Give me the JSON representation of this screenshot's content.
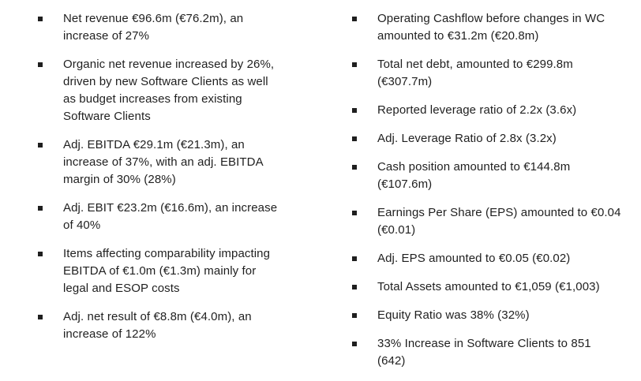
{
  "page": {
    "background_color": "#ffffff",
    "text_color": "#1f1f1f",
    "bullet_style": "small-black-square"
  },
  "columns": [
    {
      "name": "financial-highlights-left",
      "items": [
        {
          "text": "Net revenue €96.6m (€76.2m), an\nincrease of 27%"
        },
        {
          "text": "Organic net revenue increased by 26%,\ndriven by new Software Clients as well\nas budget increases from existing\nSoftware Clients"
        },
        {
          "text": "Adj. EBITDA €29.1m (€21.3m), an\nincrease of 37%, with an adj. EBITDA\nmargin of 30% (28%)"
        },
        {
          "text": "Adj. EBIT €23.2m (€16.6m), an increase\nof 40%"
        },
        {
          "text": "Items affecting comparability impacting\nEBITDA of €1.0m (€1.3m) mainly for\nlegal and ESOP costs"
        },
        {
          "text": "Adj. net result of €8.8m (€4.0m), an\nincrease of 122%"
        }
      ]
    },
    {
      "name": "financial-highlights-right",
      "items": [
        {
          "text": "Operating Cashflow before changes in WC\namounted to €31.2m (€20.8m)"
        },
        {
          "text": "Total net debt, amounted to €299.8m\n(€307.7m)"
        },
        {
          "text": "Reported leverage ratio of 2.2x (3.6x)"
        },
        {
          "text": "Adj. Leverage Ratio of 2.8x (3.2x)"
        },
        {
          "text": "Cash position amounted to €144.8m\n(€107.6m)"
        },
        {
          "text": "Earnings Per Share (EPS) amounted to €0.04\n(€0.01)"
        },
        {
          "text": "Adj. EPS amounted to €0.05 (€0.02)"
        },
        {
          "text": "Total Assets amounted to €1,059 (€1,003)"
        },
        {
          "text": "Equity Ratio was 38% (32%)"
        },
        {
          "text": "33% Increase in Software Clients to 851\n(642)"
        }
      ]
    }
  ]
}
